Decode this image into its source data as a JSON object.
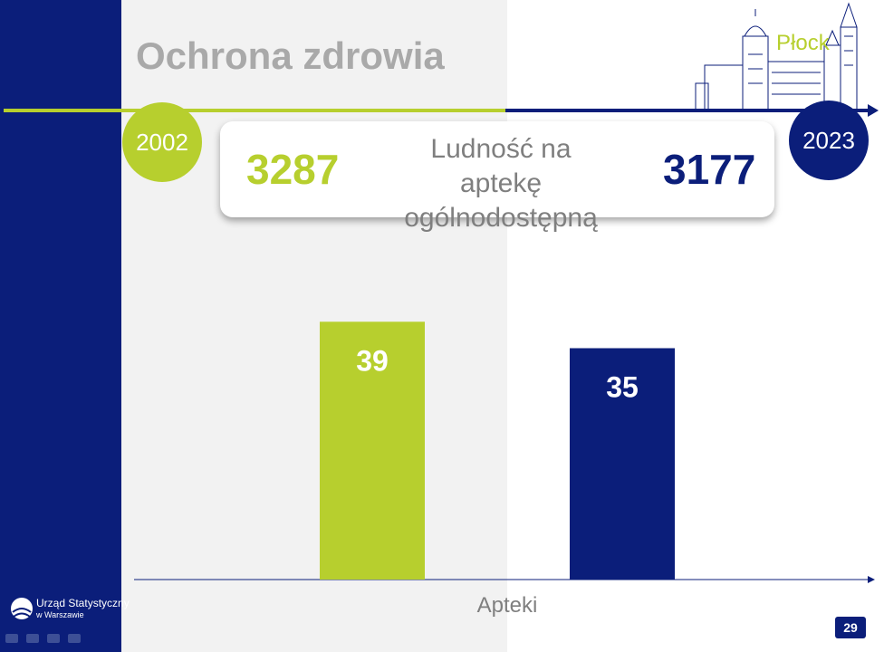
{
  "slide": {
    "title": "Ochrona zdrowia",
    "city": "Płock",
    "year_start": "2002",
    "year_end": "2023",
    "page_number": "29"
  },
  "kpi": {
    "label": "Ludność na aptekę ogólnodostępną",
    "value_start": "3287",
    "value_end": "3177"
  },
  "logo": {
    "line1": "Urząd Statystyczny",
    "line2": "w Warszawie"
  },
  "colors": {
    "navy": "#0b1e7a",
    "green": "#b7cf2e",
    "grey_text": "#a9a9a9"
  },
  "chart_data": {
    "type": "bar",
    "categories": [
      "2002",
      "2023"
    ],
    "values": [
      39,
      35
    ],
    "xlabel": "Apteki",
    "ylabel": "",
    "ylim": [
      0,
      60
    ],
    "bar_colors": [
      "#b7cf2e",
      "#0b1e7a"
    ],
    "data_labels": [
      "39",
      "35"
    ],
    "grid": false
  }
}
